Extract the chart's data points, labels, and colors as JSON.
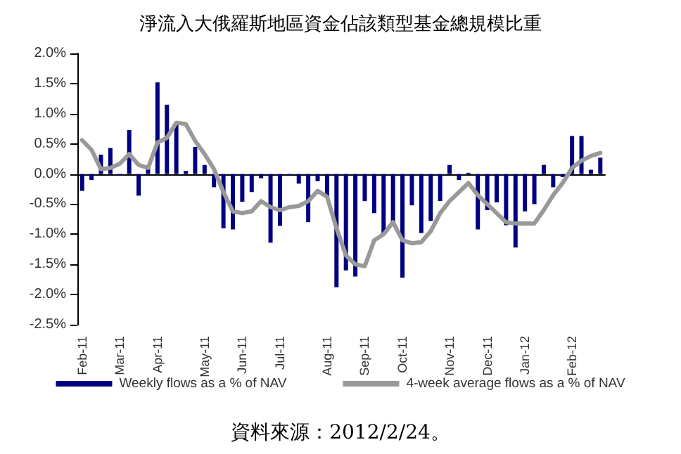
{
  "chart_data": {
    "type": "bar",
    "title": "淨流入大俄羅斯地區資金佔該類型基金總規模比重",
    "categories": [
      "Feb-11",
      null,
      null,
      null,
      "Mar-11",
      null,
      null,
      null,
      "Apr-11",
      null,
      null,
      null,
      null,
      "May-11",
      null,
      null,
      null,
      "Jun-11",
      null,
      null,
      null,
      "Jul-11",
      null,
      null,
      null,
      null,
      "Aug-11",
      null,
      null,
      null,
      "Sep-11",
      null,
      null,
      null,
      "Oct-11",
      null,
      null,
      null,
      null,
      "Nov-11",
      null,
      null,
      null,
      "Dec-11",
      null,
      null,
      null,
      "Jan-12",
      null,
      null,
      null,
      null,
      "Feb-12",
      null,
      null,
      null
    ],
    "series": [
      {
        "name": "Weekly flows as a % of NAV",
        "color": "#000080",
        "values": [
          -0.28,
          -0.1,
          0.32,
          0.43,
          -0.02,
          0.73,
          -0.36,
          0.1,
          1.52,
          1.15,
          0.85,
          0.05,
          0.45,
          0.15,
          -0.22,
          -0.9,
          -0.92,
          -0.46,
          -0.3,
          -0.07,
          -1.14,
          -0.86,
          -0.02,
          -0.16,
          -0.8,
          -0.12,
          -0.4,
          -1.88,
          -1.6,
          -1.7,
          -0.45,
          -0.65,
          -0.98,
          -0.8,
          -1.72,
          -0.52,
          -0.98,
          -0.78,
          -0.45,
          0.15,
          -0.1,
          0.02,
          -0.92,
          -0.6,
          -0.47,
          -0.85,
          -1.22,
          -0.62,
          -0.5,
          0.15,
          -0.22,
          -0.05,
          0.63,
          0.63,
          0.07,
          0.27
        ]
      },
      {
        "name": "4-week average flows as a % of NAV",
        "type": "line",
        "color": "#999999",
        "values": [
          0.56,
          0.4,
          0.08,
          0.1,
          0.17,
          0.33,
          0.15,
          0.1,
          0.52,
          0.6,
          0.85,
          0.83,
          0.55,
          0.33,
          0.08,
          -0.3,
          -0.62,
          -0.65,
          -0.62,
          -0.45,
          -0.55,
          -0.6,
          -0.55,
          -0.53,
          -0.45,
          -0.28,
          -0.38,
          -0.9,
          -1.35,
          -1.5,
          -1.53,
          -1.1,
          -1.0,
          -0.8,
          -1.1,
          -1.15,
          -1.13,
          -0.95,
          -0.65,
          -0.45,
          -0.3,
          -0.15,
          -0.35,
          -0.5,
          -0.65,
          -0.8,
          -0.82,
          -0.82,
          -0.82,
          -0.6,
          -0.35,
          -0.15,
          0.1,
          0.22,
          0.3,
          0.35
        ]
      }
    ],
    "ylim": [
      -2.5,
      2.0
    ],
    "yticks": [
      {
        "value": -2.5,
        "label": "-2.5%"
      },
      {
        "value": -2.0,
        "label": "-2.0%"
      },
      {
        "value": -1.5,
        "label": "-1.5%"
      },
      {
        "value": -1.0,
        "label": "-1.0%"
      },
      {
        "value": -0.5,
        "label": "-0.5%"
      },
      {
        "value": 0,
        "label": "0.0%"
      },
      {
        "value": 0.5,
        "label": "0.5%"
      },
      {
        "value": 1.0,
        "label": "1.0%"
      },
      {
        "value": 1.5,
        "label": "1.5%"
      },
      {
        "value": 2.0,
        "label": "2.0%"
      }
    ],
    "legend": "bottom",
    "marker": "none",
    "annotations": [
      "資料來源：2012/2/24。"
    ]
  }
}
